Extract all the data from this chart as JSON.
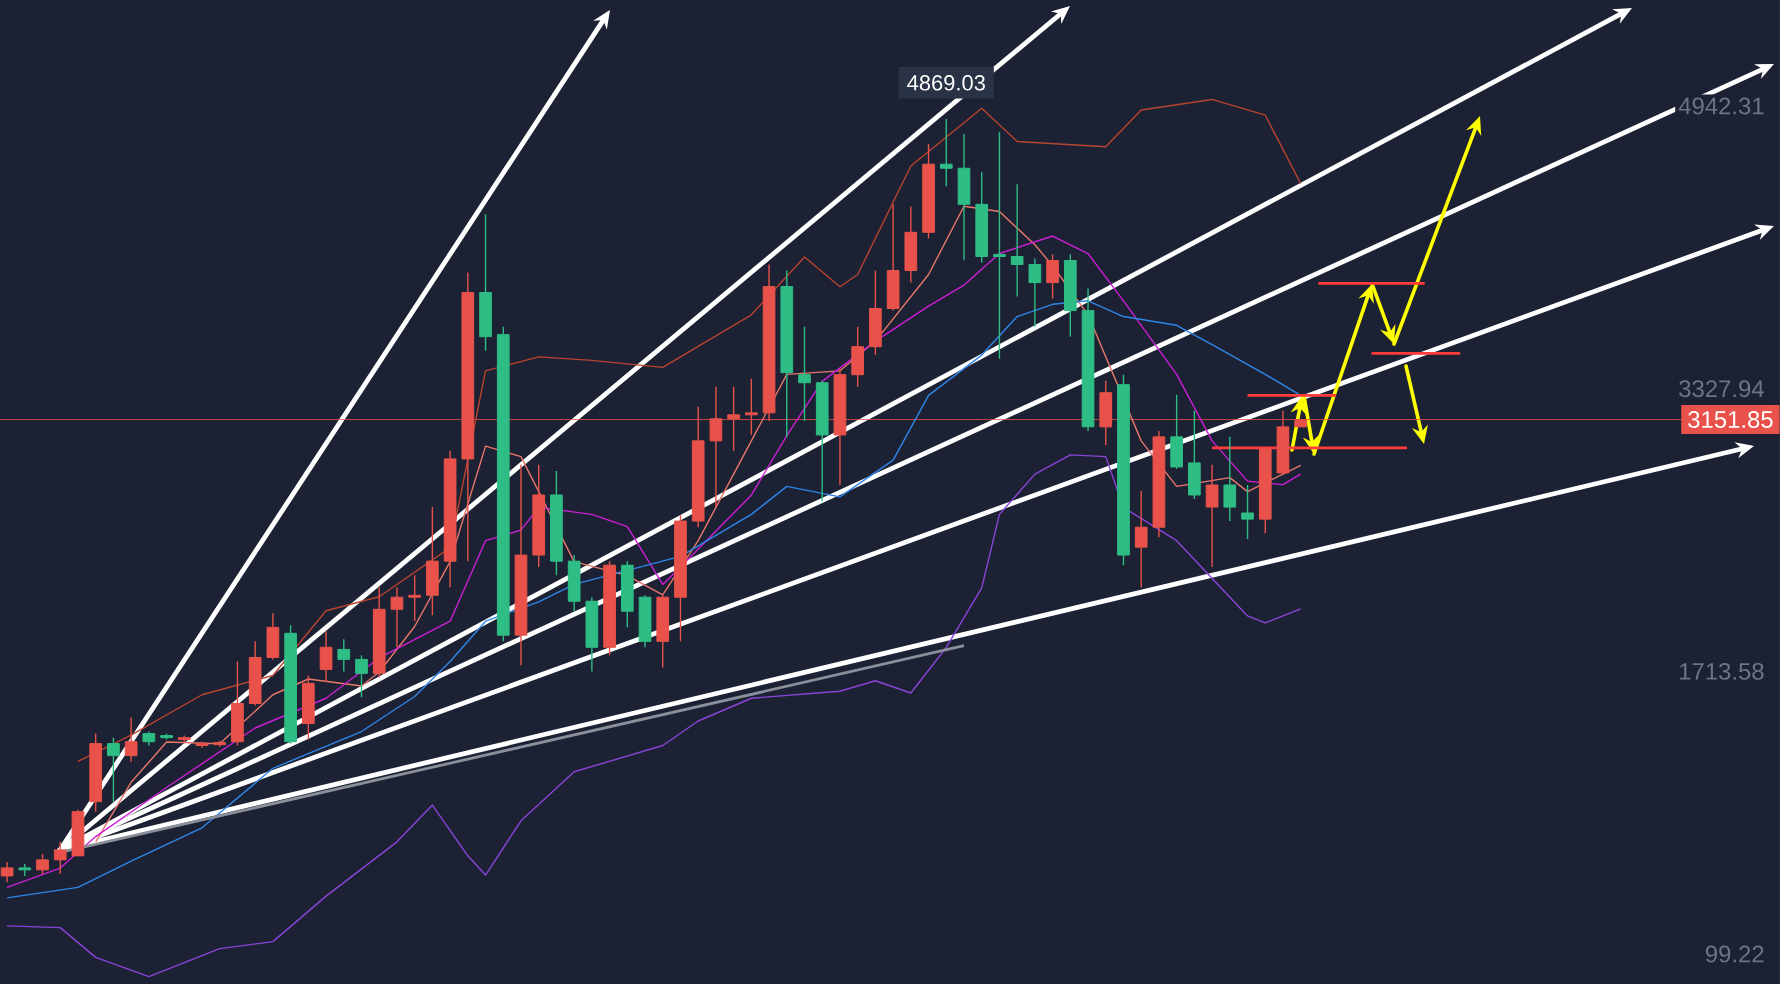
{
  "chart_data": {
    "type": "candlestick",
    "categories": [
      null,
      null,
      null,
      null,
      null,
      null,
      null,
      null,
      null,
      null,
      null,
      null,
      null,
      null,
      null,
      null,
      null,
      null,
      null,
      null,
      null,
      null,
      null,
      null,
      null,
      null,
      null,
      null,
      null,
      null,
      null,
      null,
      null,
      null,
      null,
      null,
      null,
      null,
      null,
      null,
      null,
      null,
      null,
      null,
      null,
      null,
      null,
      null,
      null,
      null,
      null,
      null,
      null,
      null,
      null,
      null,
      null,
      null,
      null,
      null,
      null,
      null,
      null,
      null,
      null,
      null,
      null,
      null,
      null,
      null,
      null,
      null,
      null,
      null,
      null,
      null,
      null,
      null,
      null,
      null,
      null,
      null,
      null,
      null,
      null,
      null,
      null,
      null,
      null,
      null,
      null,
      null,
      null,
      null,
      null,
      null,
      null,
      null,
      null,
      null,
      null
    ],
    "ohlc": [
      [
        545,
        625,
        511,
        591
      ],
      [
        591,
        614,
        545,
        580
      ],
      [
        580,
        671,
        557,
        637
      ],
      [
        637,
        740,
        557,
        694
      ],
      [
        660,
        923,
        660,
        912
      ],
      [
        969,
        1358,
        912,
        1301
      ],
      [
        1301,
        1335,
        969,
        1232
      ],
      [
        1232,
        1450,
        1198,
        1312
      ],
      [
        1358,
        1370,
        1290,
        1312
      ],
      [
        1347,
        1358,
        1324,
        1335
      ],
      [
        1324,
        1347,
        1312,
        1335
      ],
      [
        1290,
        1312,
        1278,
        1301
      ],
      [
        1295,
        1318,
        1283,
        1307
      ],
      [
        1312,
        1770,
        1290,
        1530
      ],
      [
        1530,
        1885,
        1519,
        1793
      ],
      [
        1793,
        2045,
        1782,
        1965
      ],
      [
        1931,
        1977,
        1301,
        1312
      ],
      [
        1416,
        1690,
        1324,
        1645
      ],
      [
        1725,
        1943,
        1656,
        1851
      ],
      [
        1839,
        1897,
        1713,
        1782
      ],
      [
        1782,
        1805,
        1565,
        1702
      ],
      [
        1702,
        2194,
        1679,
        2068
      ],
      [
        2068,
        2194,
        1851,
        2137
      ],
      [
        2137,
        2263,
        2000,
        2148
      ],
      [
        2148,
        2652,
        2034,
        2343
      ],
      [
        2343,
        2973,
        2194,
        2927
      ],
      [
        2927,
        3992,
        2343,
        3877
      ],
      [
        3877,
        4324,
        3545,
        3625
      ],
      [
        3637,
        3682,
        1885,
        1920
      ],
      [
        1920,
        2893,
        1748,
        2378
      ],
      [
        2378,
        2893,
        2309,
        2721
      ],
      [
        2721,
        2858,
        2263,
        2343
      ],
      [
        2343,
        2378,
        2057,
        2114
      ],
      [
        2114,
        2137,
        1713,
        1851
      ],
      [
        1851,
        2343,
        1805,
        2320
      ],
      [
        2320,
        2343,
        1965,
        2057
      ],
      [
        2137,
        2148,
        1851,
        1885
      ],
      [
        1885,
        2148,
        1736,
        2137
      ],
      [
        2137,
        2606,
        1885,
        2572
      ],
      [
        2572,
        3225,
        2537,
        3030
      ],
      [
        3030,
        3339,
        2652,
        3156
      ],
      [
        3156,
        3339,
        2973,
        3179
      ],
      [
        3179,
        3385,
        3064,
        3190
      ],
      [
        3190,
        4037,
        3144,
        3911
      ],
      [
        3911,
        4003,
        3053,
        3419
      ],
      [
        3408,
        3682,
        3144,
        3362
      ],
      [
        3362,
        3374,
        2686,
        3064
      ],
      [
        3064,
        3442,
        2778,
        3408
      ],
      [
        3408,
        3682,
        3339,
        3568
      ],
      [
        3568,
        4003,
        3522,
        3786
      ],
      [
        3786,
        4381,
        3774,
        4003
      ],
      [
        4003,
        4369,
        3934,
        4221
      ],
      [
        4221,
        4725,
        4186,
        4610
      ],
      [
        4610,
        4869.03,
        4484,
        4587
      ],
      [
        4587,
        4782,
        4061,
        4381
      ],
      [
        4381,
        4564,
        4049,
        4083
      ],
      [
        4095,
        4793,
        3499,
        4083
      ],
      [
        4083,
        4496,
        3854,
        4037
      ],
      [
        4037,
        4072,
        3682,
        3934
      ],
      [
        3934,
        4095,
        3843,
        4060
      ],
      [
        4060,
        4095,
        3625,
        3774
      ],
      [
        3774,
        3900,
        3087,
        3110
      ],
      [
        3110,
        3374,
        3007,
        3305
      ],
      [
        3351,
        3408,
        2320,
        2378
      ],
      [
        2423,
        2743,
        2194,
        2537
      ],
      [
        2537,
        3087,
        2480,
        3053
      ],
      [
        3053,
        3293,
        2870,
        2881
      ],
      [
        2904,
        3202,
        2698,
        2721
      ],
      [
        2652,
        2893,
        2309,
        2778
      ],
      [
        2778,
        3053,
        2572,
        2652
      ],
      [
        2618,
        2778,
        2469,
        2583
      ],
      [
        2583,
        2996,
        2503,
        2984
      ],
      [
        2847,
        3202,
        2835,
        3110
      ],
      [
        3110,
        3156,
        3110,
        3151.85
      ],
      null,
      null,
      null,
      null,
      null,
      null,
      null,
      null,
      null,
      null,
      null,
      null,
      null,
      null,
      null,
      null,
      null,
      null,
      null,
      null,
      null,
      null,
      null,
      null,
      null,
      null,
      null
    ],
    "colors": [
      "#e8524a",
      "#2ebd85",
      "#e8524a",
      "#e8524a",
      "#e8524a",
      "#e8524a",
      "#2ebd85",
      "#e8524a",
      "#2ebd85",
      "#2ebd85",
      "#e8524a",
      "#e8524a",
      "#e8524a",
      "#e8524a",
      "#e8524a",
      "#e8524a",
      "#2ebd85",
      "#e8524a",
      "#e8524a",
      "#2ebd85",
      "#2ebd85",
      "#e8524a",
      "#e8524a",
      "#e8524a",
      "#e8524a",
      "#e8524a",
      "#e8524a",
      "#2ebd85",
      "#2ebd85",
      "#e8524a",
      "#e8524a",
      "#2ebd85",
      "#2ebd85",
      "#2ebd85",
      "#e8524a",
      "#2ebd85",
      "#2ebd85",
      "#e8524a",
      "#e8524a",
      "#e8524a",
      "#e8524a",
      "#e8524a",
      "#e8524a",
      "#e8524a",
      "#2ebd85",
      "#2ebd85",
      "#2ebd85",
      "#e8524a",
      "#e8524a",
      "#e8524a",
      "#e8524a",
      "#e8524a",
      "#e8524a",
      "#2ebd85",
      "#2ebd85",
      "#2ebd85",
      "#2ebd85",
      "#2ebd85",
      "#2ebd85",
      "#e8524a",
      "#2ebd85",
      "#2ebd85",
      "#e8524a",
      "#2ebd85",
      "#e8524a",
      "#e8524a",
      "#2ebd85",
      "#2ebd85",
      "#e8524a",
      "#2ebd85",
      "#2ebd85",
      "#e8524a",
      "#e8524a",
      "#e8524a",
      null,
      null,
      null,
      null,
      null,
      null,
      null,
      null,
      null,
      null,
      null,
      null,
      null,
      null,
      null,
      null,
      null,
      null,
      null,
      null,
      null,
      null,
      null,
      null,
      null,
      null,
      null
    ],
    "series": [
      {
        "type": "line",
        "color": "#b8432f",
        "values": [
          null,
          null,
          null,
          null,
          1200,
          null,
          null,
          1350,
          null,
          null,
          null,
          1580,
          null,
          null,
          null,
          1690,
          null,
          null,
          2060,
          null,
          null,
          2140,
          null,
          null,
          null,
          2420,
          null,
          3430,
          null,
          null,
          3510,
          null,
          null,
          3490,
          null,
          null,
          null,
          3450,
          null,
          null,
          null,
          null,
          3750,
          null,
          null,
          4080,
          null,
          3910,
          3980,
          null,
          null,
          4600,
          null,
          null,
          null,
          4930,
          null,
          4740,
          null,
          null,
          null,
          null,
          4710,
          null,
          4920,
          null,
          null,
          null,
          4980,
          null,
          null,
          4890,
          null,
          4500,
          null,
          null,
          null,
          null,
          null,
          null,
          null,
          null,
          null,
          null,
          null,
          null,
          null,
          null,
          null,
          null,
          null,
          null,
          null,
          null,
          null,
          null,
          null,
          null,
          null,
          null,
          null
        ]
      },
      {
        "type": "line",
        "color": "#e8776b",
        "values": [
          null,
          null,
          null,
          null,
          null,
          740,
          null,
          1080,
          null,
          1310,
          null,
          null,
          1300,
          null,
          null,
          1580,
          null,
          1670,
          null,
          null,
          1630,
          1710,
          null,
          1970,
          null,
          2340,
          null,
          3000,
          null,
          2940,
          null,
          null,
          2340,
          null,
          null,
          2260,
          null,
          2150,
          null,
          2460,
          null,
          null,
          3030,
          null,
          3410,
          null,
          null,
          3430,
          null,
          3600,
          null,
          null,
          3980,
          null,
          4370,
          null,
          4340,
          null,
          4150,
          4030,
          null,
          3750,
          null,
          null,
          3030,
          null,
          2770,
          null,
          null,
          2820,
          2740,
          null,
          null,
          2890,
          null,
          null,
          null,
          null,
          null,
          null,
          null,
          null,
          null,
          null,
          null,
          null,
          null,
          null,
          null,
          null,
          null,
          null,
          null,
          null,
          null,
          null,
          null,
          null,
          null,
          null,
          null
        ]
      },
      {
        "type": "line",
        "color": "#cc1fd6",
        "values": [
          480,
          null,
          null,
          590,
          null,
          770,
          null,
          null,
          null,
          1050,
          null,
          null,
          null,
          null,
          1390,
          null,
          null,
          null,
          1560,
          null,
          null,
          1790,
          null,
          null,
          null,
          2000,
          null,
          2460,
          null,
          2520,
          2650,
          null,
          null,
          2610,
          null,
          2540,
          null,
          2210,
          2310,
          null,
          null,
          null,
          2720,
          null,
          3060,
          null,
          3370,
          null,
          null,
          3600,
          null,
          null,
          3800,
          null,
          3920,
          null,
          4100,
          null,
          null,
          4200,
          null,
          4100,
          null,
          3830,
          null,
          null,
          3410,
          null,
          3030,
          null,
          2800,
          null,
          2780,
          2840,
          null,
          null,
          null,
          null,
          null,
          null,
          null,
          null,
          null,
          null,
          null,
          null,
          null,
          null,
          null,
          null,
          null,
          null,
          null,
          null,
          null,
          null,
          null,
          null,
          null,
          null,
          null
        ]
      },
      {
        "type": "line",
        "color": "#2f86e8",
        "values": [
          420,
          null,
          null,
          null,
          480,
          null,
          null,
          630,
          null,
          null,
          null,
          820,
          null,
          null,
          null,
          1160,
          null,
          null,
          null,
          null,
          1370,
          null,
          null,
          1570,
          null,
          1770,
          null,
          2000,
          null,
          null,
          2110,
          null,
          2210,
          null,
          null,
          2290,
          null,
          null,
          2370,
          null,
          null,
          null,
          2610,
          null,
          2770,
          null,
          null,
          2710,
          null,
          null,
          2920,
          null,
          3290,
          null,
          null,
          3520,
          null,
          3740,
          null,
          3810,
          null,
          3830,
          null,
          3740,
          null,
          null,
          3690,
          null,
          3580,
          null,
          null,
          3410,
          null,
          3290,
          null,
          null,
          null,
          null,
          null,
          null,
          null,
          null,
          null,
          null,
          null,
          null,
          null,
          null,
          null,
          null,
          null,
          null,
          null,
          null,
          null,
          null,
          null,
          null,
          null,
          null,
          null
        ]
      },
      {
        "type": "line",
        "color": "#8a44d8",
        "values": [
          260,
          null,
          null,
          250,
          null,
          80,
          null,
          null,
          -30,
          null,
          null,
          null,
          130,
          null,
          null,
          170,
          null,
          null,
          430,
          null,
          null,
          null,
          740,
          null,
          950,
          null,
          660,
          550,
          null,
          860,
          null,
          null,
          1140,
          null,
          null,
          null,
          null,
          1290,
          null,
          1430,
          null,
          null,
          1560,
          null,
          null,
          null,
          null,
          1600,
          null,
          1660,
          null,
          1590,
          null,
          1850,
          null,
          2190,
          2610,
          null,
          2840,
          null,
          2950,
          null,
          2940,
          2650,
          null,
          null,
          2460,
          null,
          null,
          null,
          2030,
          1990,
          null,
          2070,
          null,
          null,
          null,
          null,
          null,
          null,
          null,
          null,
          null,
          null,
          null,
          null,
          null,
          null,
          null,
          null,
          null,
          null,
          null,
          null,
          null,
          null,
          null,
          null,
          null,
          null,
          null
        ]
      },
      {
        "type": "line",
        "color": "#8a8f99",
        "values": [
          null,
          null,
          null,
          680,
          null,
          null,
          null,
          null,
          null,
          null,
          null,
          null,
          null,
          null,
          null,
          null,
          null,
          null,
          null,
          null,
          null,
          null,
          null,
          null,
          null,
          null,
          null,
          null,
          null,
          null,
          null,
          null,
          null,
          null,
          null,
          null,
          null,
          null,
          null,
          null,
          null,
          null,
          null,
          null,
          null,
          null,
          null,
          null,
          null,
          null,
          null,
          null,
          null,
          null,
          1860,
          null,
          null,
          null,
          null,
          null,
          null,
          null,
          null,
          null,
          null,
          null,
          null,
          null,
          null,
          null,
          null,
          null,
          null,
          null,
          null,
          null,
          null,
          null,
          null,
          null,
          null,
          null,
          null,
          null,
          null,
          null,
          null,
          null,
          null,
          null,
          null,
          null,
          null,
          null,
          null,
          null,
          null,
          null,
          null,
          null,
          null
        ]
      },
      {
        "type": "line",
        "color": "#ff3b3b",
        "values": [
          null,
          null,
          null,
          null,
          null,
          null,
          null,
          null,
          null,
          null,
          null,
          null,
          null,
          null,
          null,
          null,
          null,
          null,
          null,
          null,
          null,
          null,
          null,
          null,
          null,
          null,
          null,
          null,
          null,
          null,
          null,
          null,
          null,
          null,
          null,
          null,
          null,
          null,
          null,
          null,
          null,
          null,
          null,
          null,
          null,
          null,
          null,
          null,
          null,
          null,
          null,
          null,
          null,
          null,
          null,
          null,
          null,
          null,
          null,
          null,
          null,
          null,
          null,
          null,
          null,
          null,
          null,
          null,
          null,
          null,
          3290,
          null,
          null,
          null,
          null,
          3290,
          null,
          null,
          null,
          null,
          null,
          null,
          null,
          null,
          null,
          null,
          null,
          null,
          null,
          null,
          null,
          null,
          null,
          null,
          null,
          null,
          null,
          null,
          null,
          null,
          null
        ]
      },
      {
        "type": "line",
        "color": "#ff3b3b",
        "values": [
          null,
          null,
          null,
          null,
          null,
          null,
          null,
          null,
          null,
          null,
          null,
          null,
          null,
          null,
          null,
          null,
          null,
          null,
          null,
          null,
          null,
          null,
          null,
          null,
          null,
          null,
          null,
          null,
          null,
          null,
          null,
          null,
          null,
          null,
          null,
          null,
          null,
          null,
          null,
          null,
          null,
          null,
          null,
          null,
          null,
          null,
          null,
          null,
          null,
          null,
          null,
          null,
          null,
          null,
          null,
          null,
          null,
          null,
          null,
          null,
          null,
          null,
          null,
          null,
          null,
          null,
          null,
          null,
          2990,
          null,
          null,
          null,
          null,
          null,
          null,
          null,
          null,
          null,
          null,
          2990,
          null,
          null,
          null,
          null,
          null,
          null,
          null,
          null,
          null,
          null,
          null,
          null,
          null,
          null,
          null,
          null,
          null,
          null,
          null,
          null,
          null
        ]
      },
      {
        "type": "line",
        "color": "#ff3b3b",
        "values": [
          null,
          null,
          null,
          null,
          null,
          null,
          null,
          null,
          null,
          null,
          null,
          null,
          null,
          null,
          null,
          null,
          null,
          null,
          null,
          null,
          null,
          null,
          null,
          null,
          null,
          null,
          null,
          null,
          null,
          null,
          null,
          null,
          null,
          null,
          null,
          null,
          null,
          null,
          null,
          null,
          null,
          null,
          null,
          null,
          null,
          null,
          null,
          null,
          null,
          null,
          null,
          null,
          null,
          null,
          null,
          null,
          null,
          null,
          null,
          null,
          null,
          null,
          null,
          null,
          null,
          null,
          null,
          null,
          null,
          null,
          null,
          null,
          null,
          null,
          3930,
          null,
          null,
          null,
          null,
          null,
          3930,
          null,
          null,
          null,
          null,
          null,
          null,
          null,
          null,
          null,
          null,
          null,
          null,
          null,
          null,
          null,
          null,
          null,
          null,
          null,
          null
        ]
      },
      {
        "type": "line",
        "color": "#ff3b3b",
        "values": [
          null,
          null,
          null,
          null,
          null,
          null,
          null,
          null,
          null,
          null,
          null,
          null,
          null,
          null,
          null,
          null,
          null,
          null,
          null,
          null,
          null,
          null,
          null,
          null,
          null,
          null,
          null,
          null,
          null,
          null,
          null,
          null,
          null,
          null,
          null,
          null,
          null,
          null,
          null,
          null,
          null,
          null,
          null,
          null,
          null,
          null,
          null,
          null,
          null,
          null,
          null,
          null,
          null,
          null,
          null,
          null,
          null,
          null,
          null,
          null,
          null,
          null,
          null,
          null,
          null,
          null,
          null,
          null,
          null,
          null,
          null,
          null,
          null,
          null,
          null,
          null,
          null,
          3530,
          null,
          null,
          null,
          null,
          3530,
          null,
          null,
          null,
          null,
          null,
          null,
          null,
          null,
          null,
          null,
          null,
          null,
          null,
          null,
          null,
          null,
          null,
          null
        ]
      }
    ],
    "ylim": [
      -72,
      5548
    ],
    "yticks": [
      99.22,
      1713.58,
      3327.94,
      4942.31
    ],
    "ref_lines": [
      {
        "axis": "y",
        "value": 3151.85,
        "label": "3151.85",
        "color": "#e8524a"
      }
    ],
    "annotations": [
      {
        "text": "4869.03",
        "y": 4869.03
      }
    ]
  }
}
